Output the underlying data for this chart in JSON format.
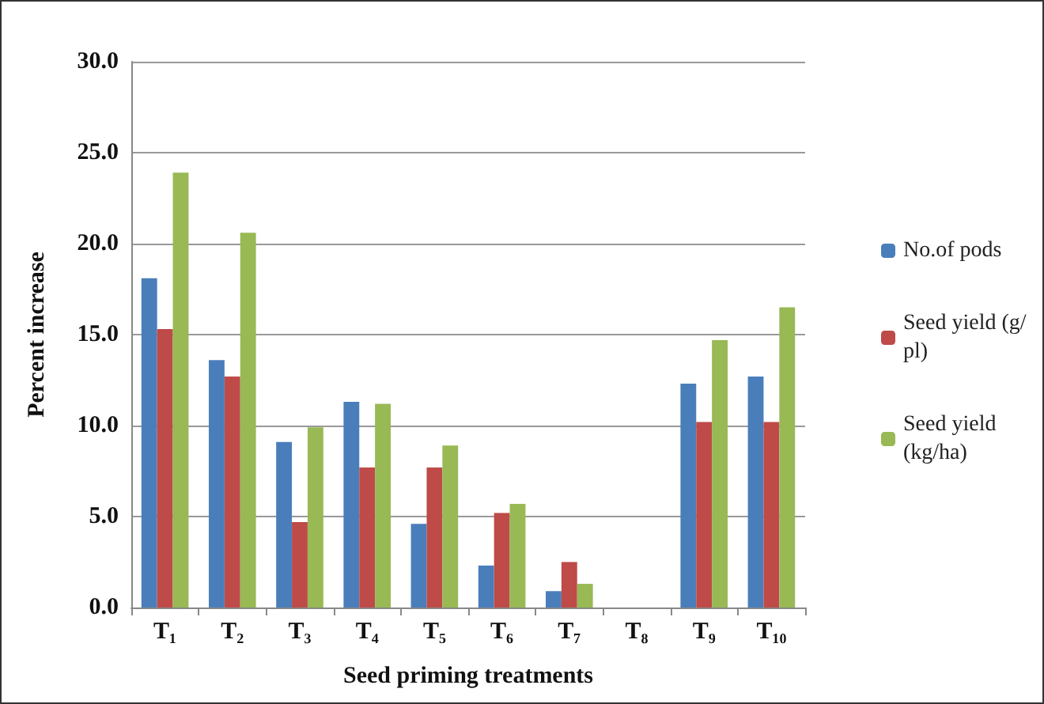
{
  "chart_data": {
    "type": "bar",
    "xlabel": "Seed priming treatments",
    "ylabel": "Percent increase",
    "categories": [
      "T₁",
      "T₂",
      "T₃",
      "T₄",
      "T₅",
      "T₆",
      "T₇",
      "T₈",
      "T₉",
      "T₁₀"
    ],
    "series": [
      {
        "name": "No.of pods",
        "color": "#4a7ebb",
        "values": [
          18.1,
          13.6,
          9.1,
          11.3,
          4.6,
          2.3,
          0.9,
          0,
          12.3,
          12.7
        ]
      },
      {
        "name": "Seed yield (g/pl)",
        "color": "#be4b48",
        "values": [
          15.3,
          12.7,
          4.7,
          7.7,
          7.7,
          5.2,
          2.5,
          0,
          10.2,
          10.2
        ]
      },
      {
        "name": "Seed yield (kg/ha)",
        "color": "#98b954",
        "values": [
          23.9,
          20.6,
          9.9,
          11.2,
          8.9,
          5.7,
          1.3,
          0,
          14.7,
          16.5
        ]
      }
    ],
    "ylim": [
      0,
      30
    ],
    "yticks": [
      {
        "value": 0,
        "label": "0.0"
      },
      {
        "value": 5,
        "label": "5.0"
      },
      {
        "value": 10,
        "label": "10.0"
      },
      {
        "value": 15,
        "label": "15.0"
      },
      {
        "value": 20,
        "label": "20.0"
      },
      {
        "value": 25,
        "label": "25.0"
      },
      {
        "value": 30,
        "label": "30.0"
      }
    ],
    "grid": "y",
    "legend": "right"
  }
}
